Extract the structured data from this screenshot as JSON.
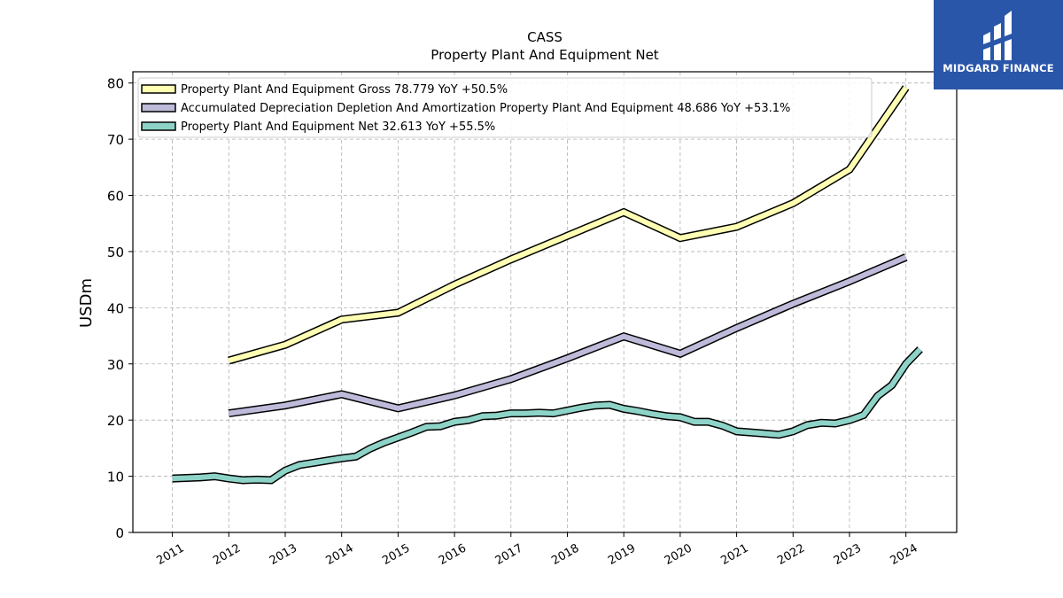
{
  "chart_data": {
    "type": "line",
    "title": "CASS",
    "subtitle": "Property Plant And Equipment Net",
    "ylabel": "USDm",
    "xlabel": "",
    "ylim": [
      0,
      82
    ],
    "xlim": [
      2010.3,
      2024.9
    ],
    "yticks": [
      0,
      10,
      20,
      30,
      40,
      50,
      60,
      70,
      80
    ],
    "xticks": [
      "2011",
      "2012",
      "2013",
      "2014",
      "2015",
      "2016",
      "2017",
      "2018",
      "2019",
      "2020",
      "2021",
      "2022",
      "2023",
      "2024"
    ],
    "grid": true,
    "legend_position": "top-left",
    "series": [
      {
        "name": "Property Plant And Equipment Gross",
        "legend_label": "Property Plant And Equipment Gross  78.779 YoY +50.5%",
        "color": "#ffffb3",
        "x": [
          2012.0,
          2013.0,
          2014.0,
          2015.0,
          2016.0,
          2017.0,
          2018.0,
          2019.0,
          2020.0,
          2021.0,
          2022.0,
          2023.0,
          2024.0
        ],
        "y": [
          30.6,
          33.4,
          37.9,
          39.1,
          44.1,
          48.6,
          52.8,
          57.0,
          52.4,
          54.4,
          58.6,
          64.6,
          79.2
        ]
      },
      {
        "name": "Accumulated Depreciation Depletion And Amortization Property Plant And Equipment",
        "legend_label": "Accumulated Depreciation Depletion And Amortization Property Plant And Equipment  48.686 YoY +53.1%",
        "color": "#bebada",
        "x": [
          2012.0,
          2013.0,
          2014.0,
          2015.0,
          2016.0,
          2017.0,
          2018.0,
          2019.0,
          2020.0,
          2021.0,
          2022.0,
          2023.0,
          2024.0
        ],
        "y": [
          21.2,
          22.6,
          24.6,
          22.1,
          24.4,
          27.3,
          31.0,
          34.9,
          31.8,
          36.4,
          40.7,
          44.7,
          49.0
        ]
      },
      {
        "name": "Property Plant And Equipment Net",
        "legend_label": "Property Plant And Equipment Net  32.613 YoY +55.5%",
        "color": "#8dd3c7",
        "x": [
          2011.0,
          2011.25,
          2011.5,
          2011.75,
          2012.0,
          2012.25,
          2012.5,
          2012.75,
          2013.0,
          2013.25,
          2013.5,
          2013.75,
          2014.0,
          2014.25,
          2014.5,
          2014.75,
          2015.0,
          2015.25,
          2015.5,
          2015.75,
          2016.0,
          2016.25,
          2016.5,
          2016.75,
          2017.0,
          2017.25,
          2017.5,
          2017.75,
          2018.0,
          2018.25,
          2018.5,
          2018.75,
          2019.0,
          2019.25,
          2019.5,
          2019.75,
          2020.0,
          2020.25,
          2020.5,
          2020.75,
          2021.0,
          2021.25,
          2021.5,
          2021.75,
          2022.0,
          2022.25,
          2022.5,
          2022.75,
          2023.0,
          2023.25,
          2023.5,
          2023.75,
          2024.0,
          2024.25
        ],
        "y": [
          9.6,
          9.7,
          9.8,
          10.0,
          9.6,
          9.3,
          9.4,
          9.3,
          11.0,
          12.0,
          12.4,
          12.8,
          13.2,
          13.5,
          14.9,
          16.0,
          16.9,
          17.8,
          18.8,
          18.9,
          19.7,
          20.0,
          20.7,
          20.8,
          21.2,
          21.2,
          21.3,
          21.2,
          21.7,
          22.2,
          22.6,
          22.7,
          22.0,
          21.6,
          21.1,
          20.7,
          20.5,
          19.7,
          19.7,
          19.0,
          18.0,
          17.8,
          17.6,
          17.4,
          18.0,
          19.1,
          19.5,
          19.4,
          20.0,
          20.9,
          24.3,
          26.2,
          30.0,
          32.6
        ]
      }
    ]
  },
  "branding": {
    "logo_text": "MIDGARD FINANCE",
    "logo_color": "#2956a8"
  }
}
